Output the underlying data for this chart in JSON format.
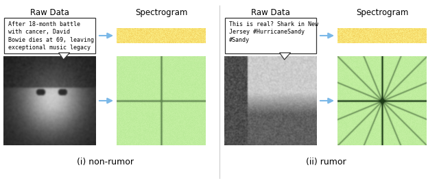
{
  "title_left": "Raw Data",
  "title_right_left": "Spectrogram",
  "title_left2": "Raw Data",
  "title_right_right": "Spectrogram",
  "text_nonrumor": "After 18-month battle\nwith cancer, David\nBowie dies at 69, leaving\nexceptional music legacy",
  "text_rumor": "This is real? Shark in New\nJersey #HurricaneSandy\n#Sandy",
  "caption_left": "(i) non-rumor",
  "caption_right": "(ii) rumor",
  "bg_color": "#ffffff",
  "text_box_color": "#ffffff",
  "text_box_edge": "#333333",
  "arrow_color": "#7ab8e8",
  "panel_divider": "#cccccc",
  "yellow_r": 0.97,
  "yellow_g": 0.88,
  "yellow_b": 0.45,
  "green_r": 0.75,
  "green_g": 0.93,
  "green_b": 0.62
}
